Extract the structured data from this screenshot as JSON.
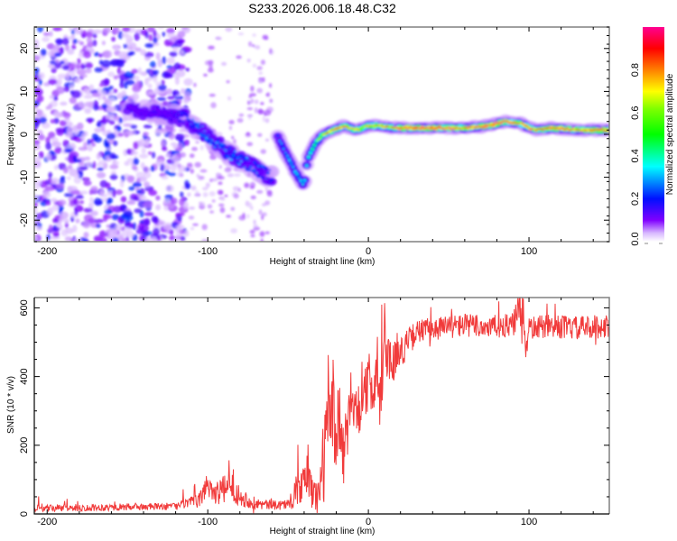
{
  "figure": {
    "title": "S233.2026.006.18.48.C32"
  },
  "chart_data": [
    {
      "type": "heatmap",
      "name": "spectrogram",
      "title": "",
      "xlabel": "Height of straight line (km)",
      "ylabel": "Frequency (Hz)",
      "xlim": [
        -208,
        150
      ],
      "ylim": [
        -25,
        25
      ],
      "xticks": [
        -200,
        -100,
        0,
        100
      ],
      "xtick_labels": [
        "-200",
        "-100",
        "0",
        "100"
      ],
      "yticks": [
        -20,
        -10,
        0,
        10,
        20
      ],
      "ytick_labels": [
        "-20",
        "-10",
        "0",
        "10",
        "20"
      ],
      "grid": false,
      "colorbar": {
        "label": "Normalized spectral amplitude",
        "range": [
          0,
          1
        ],
        "ticks": [
          0.0,
          0.2,
          0.4,
          0.6,
          0.8
        ],
        "tick_labels": [
          "0.0",
          "0.2",
          "0.4",
          "0.6",
          "0.8"
        ],
        "colormap": [
          "#ffffff",
          "#d0a8ff",
          "#8000ff",
          "#0000ff",
          "#00ffff",
          "#00ff00",
          "#ffff00",
          "#ff8000",
          "#ff0000",
          "#ff0080"
        ]
      },
      "noise_region": {
        "x_range": [
          -208,
          -112
        ],
        "freq_range": [
          -25,
          25
        ],
        "amplitude": [
          0.0,
          0.2
        ]
      },
      "sparse_region": {
        "x_range": [
          -112,
          -60
        ],
        "freq_range": [
          -25,
          25
        ],
        "amplitude": [
          0.0,
          0.1
        ]
      },
      "signal_track": {
        "x": [
          -150,
          -130,
          -115,
          -105,
          -95,
          -85,
          -75,
          -65,
          -60,
          -58,
          -52,
          -45,
          -40,
          -38,
          -33,
          -28,
          -22,
          -15,
          -8,
          0,
          8,
          15,
          25,
          40,
          60,
          75,
          85,
          95,
          100,
          105,
          115,
          130,
          150
        ],
        "freq": [
          6,
          5,
          4,
          1,
          -2,
          -5,
          -7,
          -9,
          -10,
          1,
          -4,
          -9,
          -12,
          -6,
          -2,
          0,
          1,
          2,
          1,
          2,
          2,
          1.5,
          1.5,
          1.5,
          1.5,
          2,
          3,
          2.5,
          1.5,
          1,
          1.5,
          1,
          1
        ],
        "amplitude": [
          0.15,
          0.15,
          0.2,
          0.3,
          0.28,
          0.3,
          0.28,
          0.25,
          0.2,
          0.25,
          0.3,
          0.35,
          0.35,
          0.4,
          0.55,
          0.7,
          0.85,
          0.8,
          0.75,
          0.7,
          0.8,
          0.75,
          0.95,
          0.95,
          0.85,
          0.9,
          0.95,
          0.8,
          0.85,
          0.8,
          0.9,
          0.8,
          0.9
        ]
      }
    },
    {
      "type": "line",
      "name": "snr",
      "title": "",
      "xlabel": "Height of straight line (km)",
      "ylabel": "SNR (10 * v/v)",
      "xlim": [
        -208,
        150
      ],
      "ylim": [
        0,
        630
      ],
      "xticks": [
        -200,
        -100,
        0,
        100
      ],
      "xtick_labels": [
        "-200",
        "-100",
        "0",
        "100"
      ],
      "yticks": [
        0,
        200,
        400,
        600
      ],
      "ytick_labels": [
        "0",
        "200",
        "400",
        "600"
      ],
      "grid": false,
      "color": "#f03030",
      "series": [
        {
          "name": "SNR",
          "x": [
            -208,
            -180,
            -150,
            -120,
            -105,
            -100,
            -95,
            -90,
            -85,
            -80,
            -70,
            -60,
            -48,
            -45,
            -40,
            -38,
            -35,
            -32,
            -30,
            -28,
            -25,
            -22,
            -20,
            -18,
            -15,
            -12,
            -10,
            -5,
            0,
            5,
            8,
            10,
            12,
            15,
            20,
            25,
            30,
            40,
            50,
            60,
            70,
            80,
            90,
            95,
            98,
            100,
            110,
            120,
            130,
            140,
            150
          ],
          "y": [
            15,
            18,
            20,
            22,
            40,
            90,
            60,
            70,
            80,
            50,
            30,
            25,
            30,
            70,
            80,
            140,
            60,
            50,
            80,
            150,
            250,
            320,
            200,
            280,
            150,
            300,
            340,
            300,
            380,
            420,
            300,
            560,
            450,
            450,
            470,
            500,
            530,
            540,
            545,
            550,
            545,
            545,
            550,
            600,
            500,
            540,
            545,
            545,
            540,
            545,
            545
          ],
          "noise_amplitude": [
            15,
            15,
            15,
            15,
            30,
            60,
            50,
            60,
            60,
            40,
            25,
            20,
            25,
            60,
            80,
            120,
            80,
            80,
            100,
            180,
            200,
            220,
            150,
            200,
            150,
            150,
            120,
            100,
            120,
            150,
            150,
            150,
            100,
            80,
            70,
            60,
            50,
            50,
            50,
            50,
            50,
            50,
            50,
            120,
            100,
            50,
            50,
            50,
            50,
            50,
            50
          ]
        }
      ]
    }
  ]
}
